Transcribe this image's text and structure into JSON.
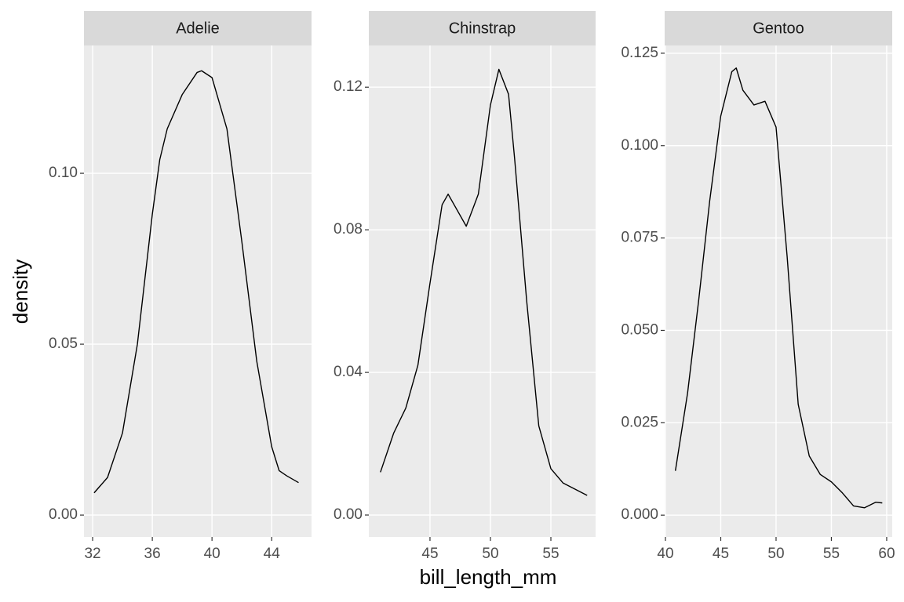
{
  "x_label": "bill_length_mm",
  "y_label": "density",
  "chart_data": [
    {
      "type": "line",
      "title": "Adelie",
      "color": "#000000",
      "grid": true,
      "x": [
        32.1,
        33,
        34,
        35,
        36,
        36.5,
        37,
        38,
        39,
        39.3,
        40,
        41,
        42,
        43,
        44,
        44.5,
        45,
        45.8
      ],
      "values": [
        0.0065,
        0.011,
        0.024,
        0.05,
        0.088,
        0.104,
        0.113,
        0.123,
        0.1295,
        0.13,
        0.128,
        0.113,
        0.08,
        0.045,
        0.02,
        0.013,
        0.0115,
        0.0095
      ],
      "xlim": [
        31.42,
        46.67
      ],
      "ylim": [
        -0.0064,
        0.1374
      ],
      "xticks": [
        32,
        36,
        40,
        44
      ],
      "yticks": [
        {
          "value": 0,
          "label": "0.00"
        },
        {
          "value": 0.05,
          "label": "0.05"
        },
        {
          "value": 0.1,
          "label": "0.10"
        }
      ]
    },
    {
      "type": "line",
      "title": "Chinstrap",
      "color": "#000000",
      "grid": true,
      "x": [
        40.9,
        42,
        43,
        44,
        45,
        46,
        46.5,
        47,
        48,
        49,
        50,
        50.7,
        51.5,
        52,
        53,
        54,
        55,
        56,
        58
      ],
      "values": [
        0.012,
        0.023,
        0.03,
        0.042,
        0.065,
        0.087,
        0.09,
        0.087,
        0.081,
        0.09,
        0.115,
        0.125,
        0.118,
        0.1,
        0.06,
        0.025,
        0.013,
        0.009,
        0.0055
      ],
      "xlim": [
        39.94,
        58.7
      ],
      "ylim": [
        -0.00615,
        0.1317
      ],
      "xticks": [
        45,
        50,
        55
      ],
      "yticks": [
        {
          "value": 0,
          "label": "0.00"
        },
        {
          "value": 0.04,
          "label": "0.04"
        },
        {
          "value": 0.08,
          "label": "0.08"
        },
        {
          "value": 0.12,
          "label": "0.12"
        }
      ]
    },
    {
      "type": "line",
      "title": "Gentoo",
      "color": "#000000",
      "grid": true,
      "x": [
        40.9,
        42,
        43,
        44,
        45,
        46,
        46.4,
        47,
        48,
        49,
        50,
        51,
        52,
        53,
        54,
        55,
        56,
        57,
        58,
        59,
        59.6
      ],
      "values": [
        0.012,
        0.033,
        0.058,
        0.085,
        0.108,
        0.12,
        0.121,
        0.115,
        0.111,
        0.112,
        0.105,
        0.07,
        0.03,
        0.016,
        0.011,
        0.009,
        0.006,
        0.0025,
        0.002,
        0.0035,
        0.0033
      ],
      "xlim": [
        39.93,
        60.5
      ],
      "ylim": [
        -0.0059,
        0.1271
      ],
      "xticks": [
        40,
        45,
        50,
        55,
        60
      ],
      "yticks": [
        {
          "value": 0,
          "label": "0.000"
        },
        {
          "value": 0.025,
          "label": "0.025"
        },
        {
          "value": 0.05,
          "label": "0.050"
        },
        {
          "value": 0.075,
          "label": "0.075"
        },
        {
          "value": 0.1,
          "label": "0.100"
        },
        {
          "value": 0.125,
          "label": "0.125"
        }
      ]
    }
  ]
}
